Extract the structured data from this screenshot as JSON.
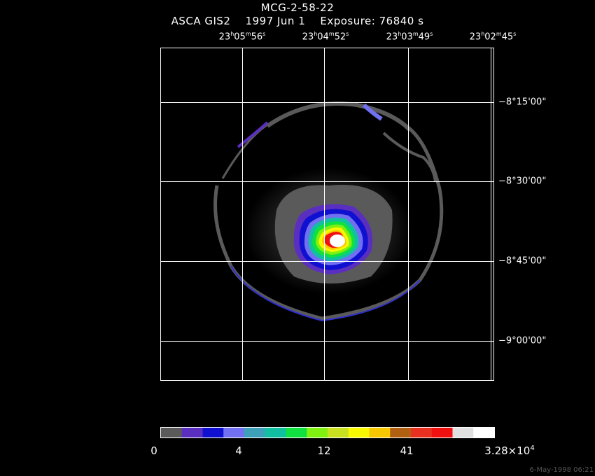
{
  "title": "MCG-2-58-22",
  "subtitle": {
    "instrument": "ASCA GIS2",
    "date": "1997 Jun  1",
    "exposure": "Exposure: 76840 s"
  },
  "ra_labels": [
    {
      "h": "23",
      "m": "05",
      "s": "56"
    },
    {
      "h": "23",
      "m": "04",
      "s": "52"
    },
    {
      "h": "23",
      "m": "03",
      "s": "49"
    },
    {
      "h": "23",
      "m": "02",
      "s": "45"
    }
  ],
  "dec_labels": [
    "−8°15'00\"",
    "−8°30'00\"",
    "−8°45'00\"",
    "−9°00'00\""
  ],
  "colorbar": {
    "colors": [
      "#5a5a5a",
      "#5a2fc0",
      "#1010d0",
      "#7070f0",
      "#3ea0b8",
      "#10c0a0",
      "#10e040",
      "#80f010",
      "#c8e020",
      "#f8f800",
      "#f8c800",
      "#b06010",
      "#e83020",
      "#f01010",
      "#e0e0e0",
      "#ffffff"
    ],
    "labels": [
      "0",
      "4",
      "12",
      "41"
    ],
    "max_mantissa": "3.28×10",
    "max_exponent": "4"
  },
  "timestamp": "6-May-1998 06:21",
  "colors": {
    "background": "#000000",
    "grid": "#ffffff"
  }
}
